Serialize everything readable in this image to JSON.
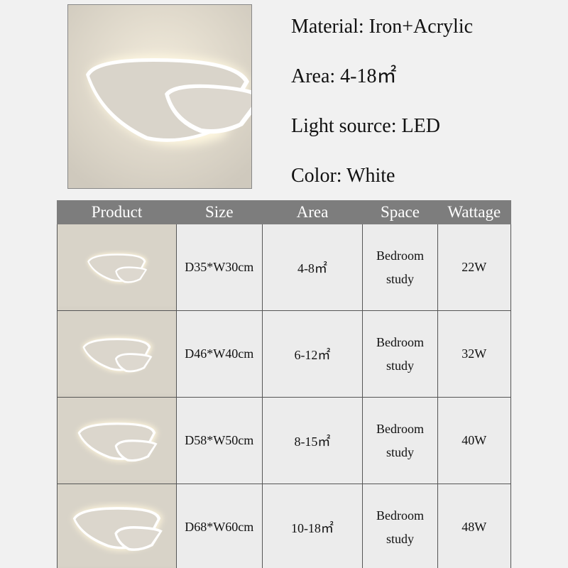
{
  "specs": [
    {
      "label": "Material",
      "value": "Iron+Acrylic",
      "text": "Material: Iron+Acrylic"
    },
    {
      "label": "Area",
      "value": "4-18㎡",
      "text": "Area: 4-18㎡"
    },
    {
      "label": "Light source",
      "value": "LED",
      "text": "Light source: LED"
    },
    {
      "label": "Color",
      "value": "White",
      "text": "Color: White"
    }
  ],
  "table": {
    "headers": [
      "Product",
      "Size",
      "Area",
      "Space",
      "Wattage"
    ],
    "rows": [
      {
        "size": "D35*W30cm",
        "area": "4-8㎡",
        "space_line1": "Bedroom",
        "space_line2": "study",
        "wattage": "22W"
      },
      {
        "size": "D46*W40cm",
        "area": "6-12㎡",
        "space_line1": "Bedroom",
        "space_line2": "study",
        "wattage": "32W"
      },
      {
        "size": "D58*W50cm",
        "area": "8-15㎡",
        "space_line1": "Bedroom",
        "space_line2": "study",
        "wattage": "40W"
      },
      {
        "size": "D68*W60cm",
        "area": "10-18㎡",
        "space_line1": "Bedroom",
        "space_line2": "study",
        "wattage": "48W"
      }
    ]
  },
  "colors": {
    "header_bg": "#7d7d7d",
    "cell_bg": "#ececec",
    "lamp_glow": "#fff4d6"
  }
}
